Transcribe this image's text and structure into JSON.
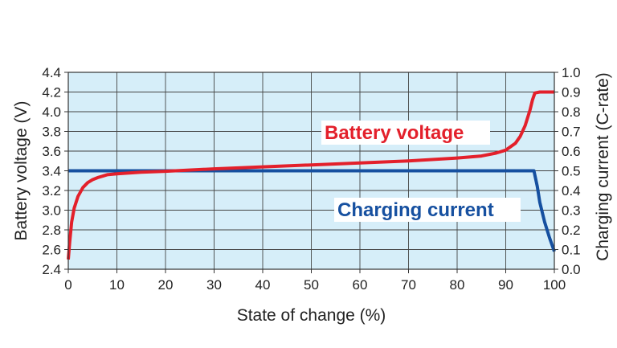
{
  "chart_data": {
    "type": "line",
    "title": "",
    "xlabel": "State of change (%)",
    "ylabel_left": "Battery voltage (V)",
    "ylabel_right": "Charging current (C-rate)",
    "xlim": [
      0,
      100
    ],
    "ylim_left": [
      2.4,
      4.4
    ],
    "ylim_right": [
      0.0,
      1.0
    ],
    "x_ticks": [
      "0",
      "10",
      "20",
      "30",
      "40",
      "50",
      "60",
      "70",
      "80",
      "90",
      "100"
    ],
    "y_left_ticks": [
      "2.4",
      "2.6",
      "2.8",
      "3.0",
      "3.2",
      "3.4",
      "3.6",
      "3.8",
      "4.0",
      "4.2",
      "4.4"
    ],
    "y_right_ticks": [
      "0.0",
      "0.1",
      "0.2",
      "0.3",
      "0.4",
      "0.5",
      "0.6",
      "0.7",
      "0.8",
      "0.9",
      "1.0"
    ],
    "grid": true,
    "background_color": "#d6eef9",
    "series": [
      {
        "name": "Battery voltage",
        "axis": "left",
        "color": "#e3202b",
        "x": [
          0,
          0.3,
          0.7,
          1.2,
          2,
          3,
          4,
          5,
          6,
          8,
          10,
          15,
          20,
          30,
          40,
          50,
          60,
          70,
          80,
          85,
          88,
          90,
          92,
          93,
          94,
          95,
          95.5,
          96,
          97,
          100
        ],
        "y": [
          2.5,
          2.68,
          2.88,
          3.02,
          3.14,
          3.23,
          3.28,
          3.31,
          3.33,
          3.36,
          3.37,
          3.385,
          3.395,
          3.42,
          3.44,
          3.46,
          3.48,
          3.5,
          3.53,
          3.55,
          3.58,
          3.61,
          3.68,
          3.75,
          3.86,
          4.02,
          4.12,
          4.19,
          4.2,
          4.2
        ]
      },
      {
        "name": "Charging current",
        "axis": "right",
        "color": "#1650a0",
        "x": [
          0,
          20,
          40,
          60,
          80,
          95.8,
          96.5,
          97,
          98,
          99,
          100
        ],
        "y": [
          0.5,
          0.5,
          0.5,
          0.5,
          0.5,
          0.5,
          0.42,
          0.34,
          0.24,
          0.16,
          0.09
        ]
      }
    ]
  }
}
